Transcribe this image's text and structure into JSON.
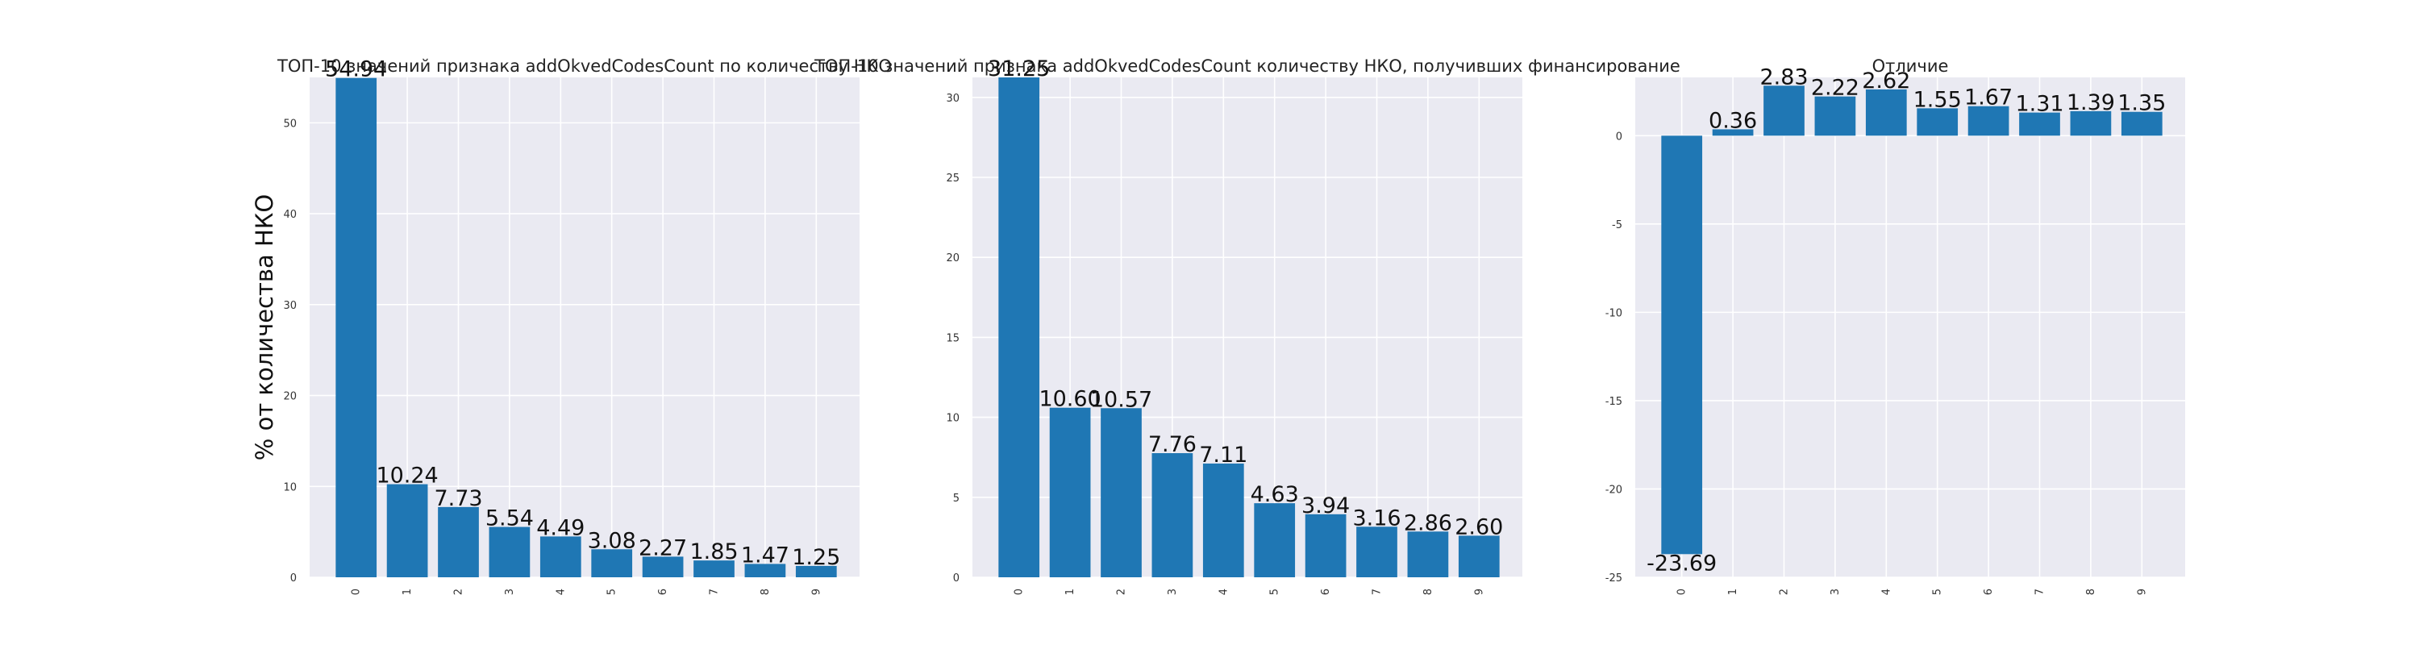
{
  "chart_data": [
    {
      "type": "bar",
      "title": "ТОП-10 значений признака addOkvedCodesCount по количеству НКО",
      "xlabel": "",
      "ylabel": "% от количества НКО",
      "categories": [
        "0",
        "1",
        "2",
        "3",
        "4",
        "5",
        "6",
        "7",
        "8",
        "9"
      ],
      "values": [
        54.94,
        10.24,
        7.73,
        5.54,
        4.49,
        3.08,
        2.27,
        1.85,
        1.47,
        1.25
      ],
      "value_labels": [
        "54.94",
        "10.24",
        "7.73",
        "5.54",
        "4.49",
        "3.08",
        "2.27",
        "1.85",
        "1.47",
        "1.25"
      ],
      "ylim": [
        0,
        55
      ],
      "yticks": [
        0,
        10,
        20,
        30,
        40,
        50
      ],
      "grid": true,
      "bar_color": "#1f77b4"
    },
    {
      "type": "bar",
      "title": "ТОП-10 значений признака addOkvedCodesCount количеству НКО, получивших финансирование",
      "xlabel": "",
      "ylabel": "",
      "categories": [
        "0",
        "1",
        "2",
        "3",
        "4",
        "5",
        "6",
        "7",
        "8",
        "9"
      ],
      "values": [
        31.25,
        10.6,
        10.57,
        7.76,
        7.11,
        4.63,
        3.94,
        3.16,
        2.86,
        2.6
      ],
      "value_labels": [
        "31.25",
        "10.60",
        "10.57",
        "7.76",
        "7.11",
        "4.63",
        "3.94",
        "3.16",
        "2.86",
        "2.60"
      ],
      "ylim": [
        0,
        31.25
      ],
      "yticks": [
        0,
        5,
        10,
        15,
        20,
        25,
        30
      ],
      "grid": true,
      "bar_color": "#1f77b4"
    },
    {
      "type": "bar",
      "title": "Отличие",
      "xlabel": "",
      "ylabel": "",
      "categories": [
        "0",
        "1",
        "2",
        "3",
        "4",
        "5",
        "6",
        "7",
        "8",
        "9"
      ],
      "values": [
        -23.69,
        0.36,
        2.83,
        2.22,
        2.62,
        1.55,
        1.67,
        1.31,
        1.39,
        1.35
      ],
      "value_labels": [
        "-23.69",
        "0.36",
        "2.83",
        "2.22",
        "2.62",
        "1.55",
        "1.67",
        "1.31",
        "1.39",
        "1.35"
      ],
      "ylim": [
        -25,
        3.3
      ],
      "yticks": [
        -25,
        -20,
        -15,
        -10,
        -5,
        0
      ],
      "grid": true,
      "bar_color": "#1f77b4"
    }
  ]
}
